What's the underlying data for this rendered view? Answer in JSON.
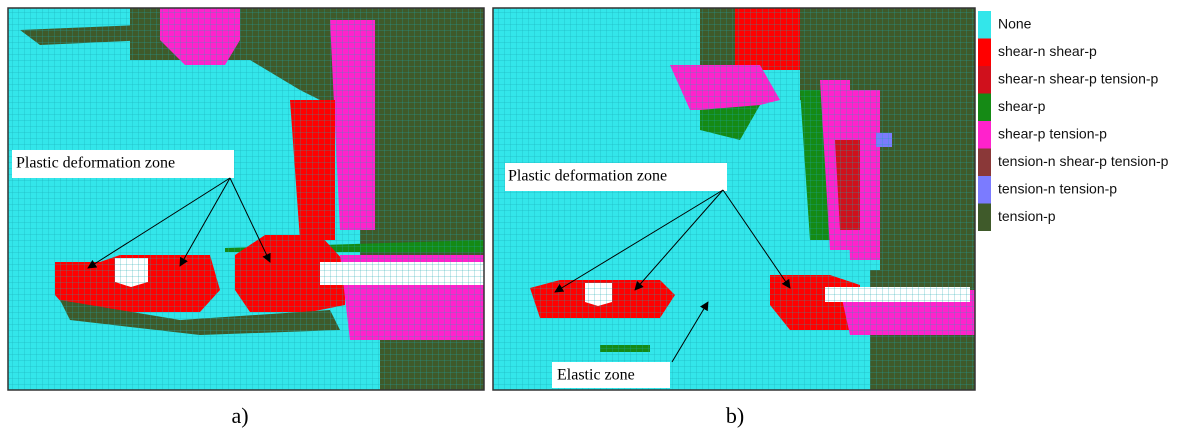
{
  "panels": [
    {
      "label": "a)",
      "annotations": [
        "Plastic deformation zone"
      ]
    },
    {
      "label": "b)",
      "annotations": [
        "Plastic deformation zone",
        "Elastic zone"
      ]
    }
  ],
  "legend": [
    {
      "name": "None",
      "color": "#33e6ea"
    },
    {
      "name": "shear-n shear-p",
      "color": "#ff0000"
    },
    {
      "name": "shear-n shear-p tension-p",
      "color": "#d0101c"
    },
    {
      "name": "shear-p",
      "color": "#158a15"
    },
    {
      "name": "shear-p tension-p",
      "color": "#ff22cc"
    },
    {
      "name": "tension-n shear-p tension-p",
      "color": "#8a3838"
    },
    {
      "name": "tension-n tension-p",
      "color": "#7b7bff"
    },
    {
      "name": "tension-p",
      "color": "#3f5a2a"
    }
  ]
}
